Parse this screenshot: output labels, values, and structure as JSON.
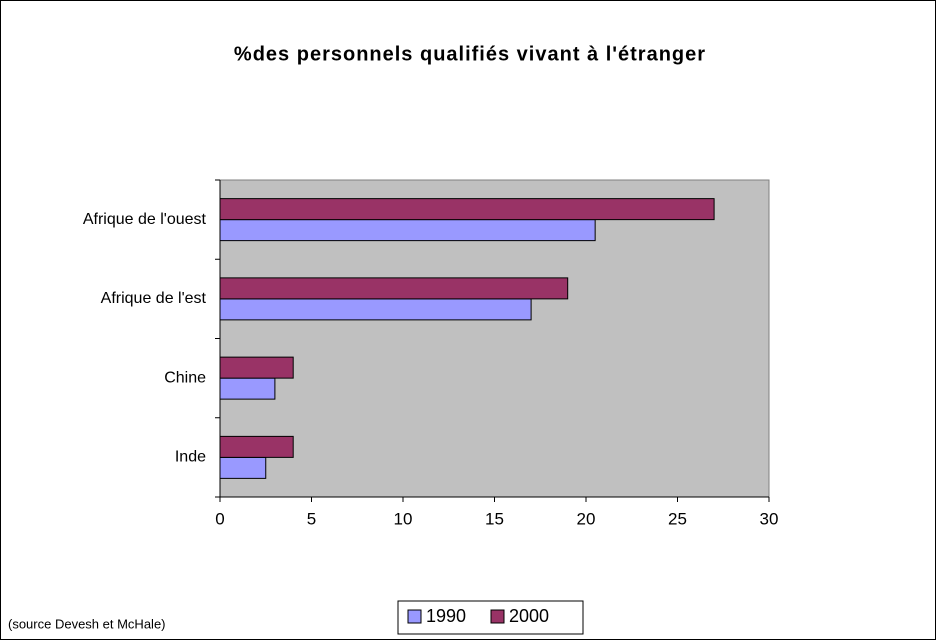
{
  "chart_data": {
    "type": "hbar",
    "title": "%des personnels qualifiés vivant à l'étranger",
    "categories": [
      "Afrique de l'ouest",
      "Afrique de l'est",
      "Chine",
      "Inde"
    ],
    "series": [
      {
        "name": "1990",
        "color": "#9999ff",
        "values": [
          20.5,
          17,
          3,
          2.5
        ]
      },
      {
        "name": "2000",
        "color": "#993366",
        "values": [
          27,
          19,
          4,
          4
        ]
      }
    ],
    "xlim": [
      0,
      30
    ],
    "xticks": [
      0,
      5,
      10,
      15,
      20,
      25,
      30
    ],
    "grid": false,
    "legend": "bottom",
    "annotations": [
      "(source Devesh et McHale)"
    ]
  }
}
